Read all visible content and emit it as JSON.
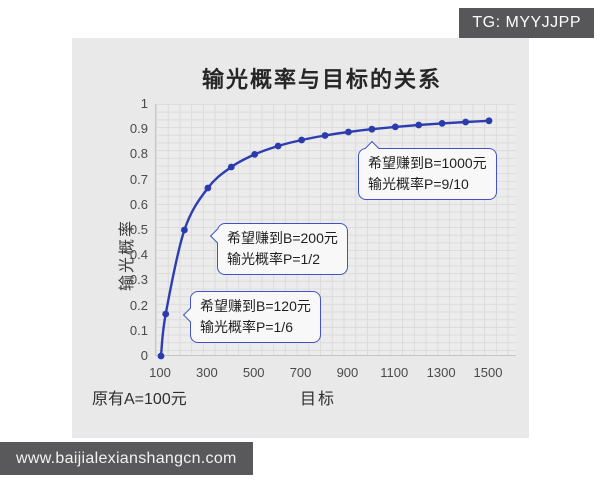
{
  "watermarks": {
    "tg_badge": "TG: MYYJJPP",
    "site_banner": "www.baijialexianshangcn.com"
  },
  "chart": {
    "title": "输光概率与目标的关系",
    "y_axis_label": "输光概率",
    "x_axis_label": "目标",
    "origin_note": "原有A=100元"
  },
  "chart_data": {
    "type": "line",
    "title": "输光概率与目标的关系",
    "xlabel": "目标",
    "ylabel": "输光概率",
    "x": [
      100,
      120,
      200,
      300,
      400,
      500,
      600,
      700,
      800,
      900,
      1000,
      1100,
      1200,
      1300,
      1400,
      1500
    ],
    "y": [
      0,
      0.1667,
      0.5,
      0.6667,
      0.75,
      0.8,
      0.8333,
      0.8571,
      0.875,
      0.8889,
      0.9,
      0.9091,
      0.9167,
      0.9231,
      0.9286,
      0.9333
    ],
    "x_ticks": [
      "100",
      "300",
      "500",
      "700",
      "900",
      "1100",
      "1300",
      "1500"
    ],
    "y_ticks": [
      "0",
      "0.1",
      "0.2",
      "0.3",
      "0.4",
      "0.5",
      "0.6",
      "0.7",
      "0.8",
      "0.9",
      "1"
    ],
    "xlim": [
      79,
      1620
    ],
    "ylim": [
      0,
      1
    ],
    "grid": true,
    "legend": "none",
    "line_color": "#2e3eb0",
    "marker_color": "#2b3aad",
    "annotations": [
      {
        "line1": "希望赚到B=1000元",
        "line2": "输光概率P=9/10",
        "target_x": 1000,
        "target_y": 0.9
      },
      {
        "line1": "希望赚到B=200元",
        "line2": "输光概率P=1/2",
        "target_x": 200,
        "target_y": 0.5
      },
      {
        "line1": "希望赚到B=120元",
        "line2": "输光概率P=1/6",
        "target_x": 120,
        "target_y": 0.1667
      }
    ]
  }
}
